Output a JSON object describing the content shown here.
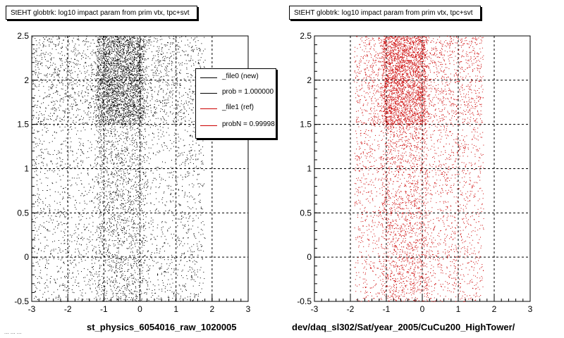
{
  "colors": {
    "new": "#000000",
    "ref": "#cc0000",
    "grid": "#000000"
  },
  "footer": "... ... ...",
  "chart_data": [
    {
      "type": "scatter",
      "title": "StEHT globtrk: log10 impact param from prim vtx, tpc+svt",
      "xlabel": "st_physics_6054016_raw_1020005",
      "ylabel": "",
      "xlim": [
        -3,
        3
      ],
      "ylim": [
        -0.5,
        2.5
      ],
      "xticks": [
        "-3",
        "-2",
        "-1",
        "0",
        "1",
        "2",
        "3"
      ],
      "yticks": [
        "-0.5",
        "0",
        "0.5",
        "1",
        "1.5",
        "2",
        "2.5"
      ],
      "grid": true,
      "series": [
        {
          "name": "_file0 (new)",
          "color": "#000000"
        }
      ],
      "legend": {
        "placement": "top-right",
        "entries": [
          "_file0 (new)",
          "prob = 1.000000",
          "_file1 (ref)",
          "probN = 0.99998"
        ],
        "colors": [
          "#000000",
          "#000000",
          "#cc0000",
          "#cc0000"
        ]
      },
      "distribution": {
        "x_range": [
          -3,
          1.8
        ],
        "x_dense_band": [
          -1.2,
          0.1
        ],
        "y_dense_band": [
          1.5,
          2.5
        ]
      }
    },
    {
      "type": "scatter",
      "title": "StEHT globtrk: log10 impact param from prim vtx, tpc+svt",
      "xlabel": "dev/daq_sl302/Sat/year_2005/CuCu200_HighTower/",
      "ylabel": "",
      "xlim": [
        -3,
        3
      ],
      "ylim": [
        -0.5,
        2.5
      ],
      "xticks": [
        "-3",
        "-2",
        "-1",
        "0",
        "1",
        "2",
        "3"
      ],
      "yticks": [
        "-0.5",
        "0",
        "0.5",
        "1",
        "1.5",
        "2",
        "2.5"
      ],
      "grid": true,
      "series": [
        {
          "name": "_file1 (ref)",
          "color": "#cc0000"
        }
      ],
      "distribution": {
        "x_range": [
          -1.9,
          1.7
        ],
        "x_dense_band": [
          -1.1,
          0.1
        ],
        "y_dense_band": [
          1.5,
          2.5
        ]
      }
    }
  ]
}
